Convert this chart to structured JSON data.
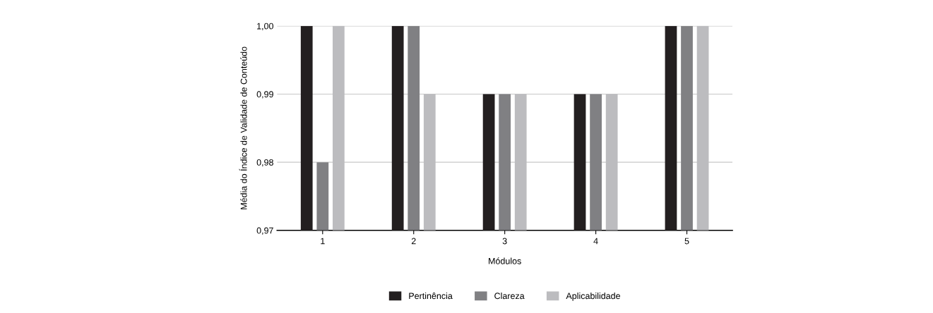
{
  "chart_data": {
    "type": "bar",
    "xlabel": "Módulos",
    "ylabel": "Média do Índice de Validade de Conteúdo",
    "categories": [
      "1",
      "2",
      "3",
      "4",
      "5"
    ],
    "series": [
      {
        "name": "Pertinência",
        "color": "#231f20",
        "values": [
          1.0,
          1.0,
          0.99,
          0.99,
          1.0
        ]
      },
      {
        "name": "Clareza",
        "color": "#808083",
        "values": [
          0.98,
          1.0,
          0.99,
          0.99,
          1.0
        ]
      },
      {
        "name": "Aplicabilidade",
        "color": "#bcbcbf",
        "values": [
          1.0,
          0.99,
          0.99,
          0.99,
          1.0
        ]
      }
    ],
    "ylim": [
      0.97,
      1.0
    ],
    "yticks": [
      {
        "value": 0.97,
        "label": "0,97"
      },
      {
        "value": 0.98,
        "label": "0,98"
      },
      {
        "value": 0.99,
        "label": "0,99"
      },
      {
        "value": 1.0,
        "label": "1,00"
      }
    ],
    "grid": "y",
    "legend": "bottom"
  }
}
